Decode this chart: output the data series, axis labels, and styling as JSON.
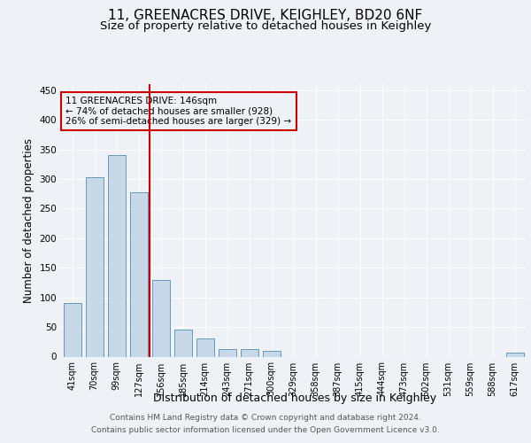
{
  "title_line1": "11, GREENACRES DRIVE, KEIGHLEY, BD20 6NF",
  "title_line2": "Size of property relative to detached houses in Keighley",
  "xlabel": "Distribution of detached houses by size in Keighley",
  "ylabel": "Number of detached properties",
  "footer": "Contains HM Land Registry data © Crown copyright and database right 2024.\nContains public sector information licensed under the Open Government Licence v3.0.",
  "categories": [
    "41sqm",
    "70sqm",
    "99sqm",
    "127sqm",
    "156sqm",
    "185sqm",
    "214sqm",
    "243sqm",
    "271sqm",
    "300sqm",
    "329sqm",
    "358sqm",
    "387sqm",
    "415sqm",
    "444sqm",
    "473sqm",
    "502sqm",
    "531sqm",
    "559sqm",
    "588sqm",
    "617sqm"
  ],
  "values": [
    90,
    303,
    341,
    278,
    130,
    45,
    30,
    13,
    13,
    10,
    0,
    0,
    0,
    0,
    0,
    0,
    0,
    0,
    0,
    0,
    7
  ],
  "bar_color": "#c8d8e8",
  "bar_edge_color": "#6699bb",
  "line_color": "#cc0000",
  "annotation_text": "11 GREENACRES DRIVE: 146sqm\n← 74% of detached houses are smaller (928)\n26% of semi-detached houses are larger (329) →",
  "annotation_box_color": "#cc0000",
  "ylim": [
    0,
    460
  ],
  "yticks": [
    0,
    50,
    100,
    150,
    200,
    250,
    300,
    350,
    400,
    450
  ],
  "background_color": "#eef2f7",
  "grid_color": "#ffffff",
  "title_fontsize": 11,
  "subtitle_fontsize": 9.5,
  "axis_label_fontsize": 8.5,
  "tick_fontsize": 7.5,
  "footer_fontsize": 6.5
}
